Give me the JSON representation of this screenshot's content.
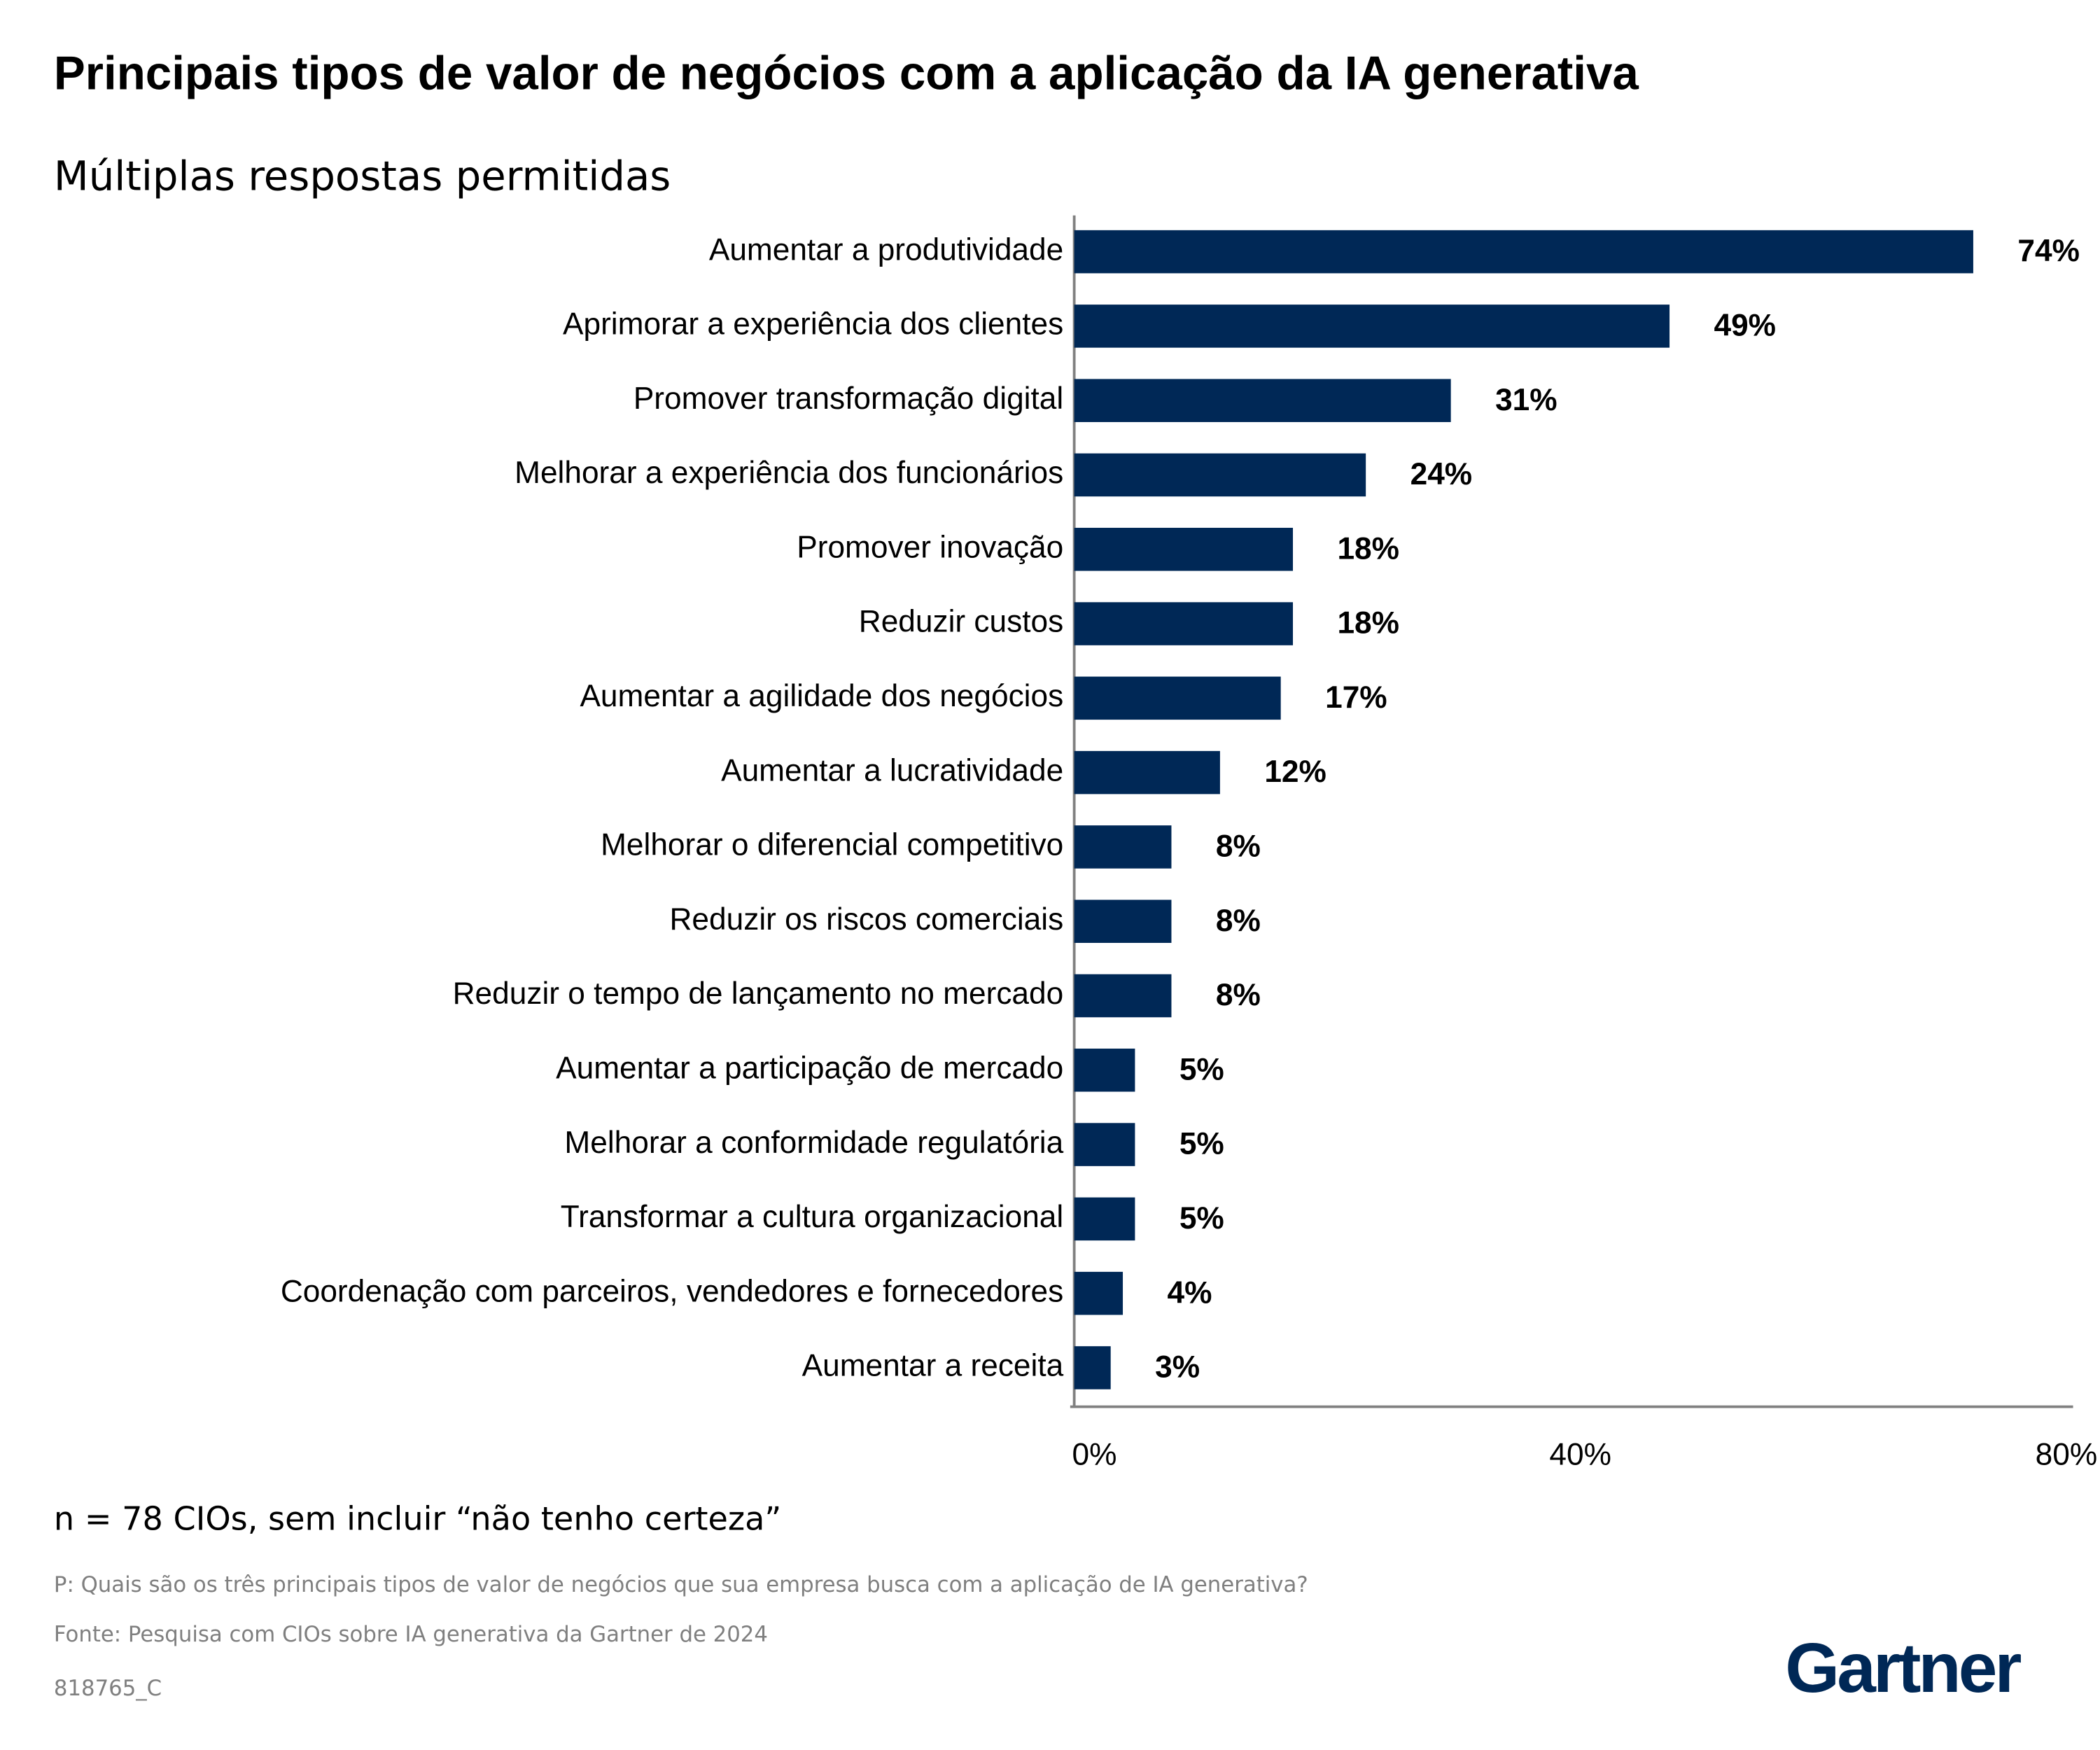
{
  "chart_data": {
    "type": "hbar",
    "title": "Principais tipos de valor de negócios com a aplicação da IA generativa",
    "subtitle": "Múltiplas respostas permitidas",
    "categories": [
      "Aumentar a produtividade",
      "Aprimorar a experiência dos clientes",
      "Promover transformação digital",
      "Melhorar a experiência dos funcionários",
      "Promover inovação",
      "Reduzir custos",
      "Aumentar a agilidade dos negócios",
      "Aumentar a lucratividade",
      "Melhorar o diferencial competitivo",
      "Reduzir os riscos comerciais",
      "Reduzir o tempo de lançamento no mercado",
      "Aumentar a participação de mercado",
      "Melhorar a conformidade regulatória",
      "Transformar a cultura organizacional",
      "Coordenação com parceiros, vendedores e fornecedores",
      "Aumentar a receita"
    ],
    "values": [
      74,
      49,
      31,
      24,
      18,
      18,
      17,
      12,
      8,
      8,
      8,
      5,
      5,
      5,
      4,
      3
    ],
    "value_labels": [
      "74%",
      "49%",
      "31%",
      "24%",
      "18%",
      "18%",
      "17%",
      "12%",
      "8%",
      "8%",
      "8%",
      "5%",
      "5%",
      "5%",
      "4%",
      "3%"
    ],
    "color": "#002856",
    "xlim": [
      0,
      80
    ],
    "xticks": [
      {
        "value": 0,
        "label": "0%"
      },
      {
        "value": 40,
        "label": "40%"
      },
      {
        "value": 80,
        "label": "80%"
      }
    ],
    "note": "n = 78 CIOs, sem incluir “não tenho certeza”",
    "question": "P: Quais são os três principais tipos de valor de negócios que sua empresa busca com a aplicação de IA generativa?",
    "source": "Fonte: Pesquisa com CIOs sobre IA generativa da Gartner de 2024",
    "code": "818765_C",
    "logo": "Gartner"
  }
}
